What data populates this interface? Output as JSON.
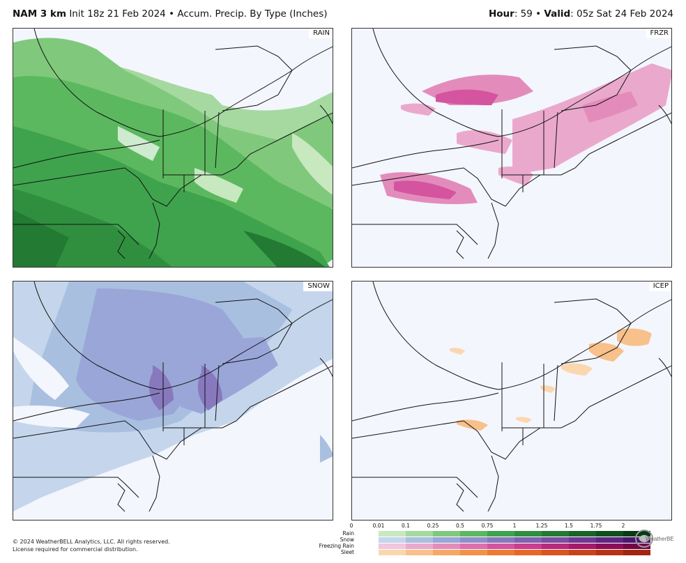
{
  "header": {
    "model": "NAM 3 km",
    "init_text": "Init 18z 21 Feb 2024",
    "bullet": "•",
    "product": "Accum. Precip. By Type (Inches)",
    "hour_label": "Hour",
    "hour_value": ": 59",
    "valid_label": "Valid",
    "valid_value": ": 05z Sat 24 Feb 2024"
  },
  "panels": {
    "rain": {
      "label": "RAIN"
    },
    "frzr": {
      "label": "FRZR"
    },
    "snow": {
      "label": "SNOW"
    },
    "icep": {
      "label": "ICEP"
    }
  },
  "footer": {
    "line1": "© 2024 WeatherBELL Analytics, LLC. All rights reserved.",
    "line2": "License required for commercial distribution."
  },
  "legend": {
    "ticks": [
      "0",
      "0.01",
      "0.1",
      "0.25",
      "0.5",
      "0.75",
      "1",
      "1.25",
      "1.5",
      "1.75",
      "2"
    ],
    "rows": [
      {
        "name": "Rain",
        "colors": [
          "#c8e8c0",
          "#a6d9a0",
          "#80c97c",
          "#5cb85f",
          "#3fa34d",
          "#2f8f3f",
          "#237a33",
          "#186528",
          "#0f501e",
          "#083d14"
        ]
      },
      {
        "name": "Snow",
        "colors": [
          "#c5d6ec",
          "#a9bfe0",
          "#9aa6d8",
          "#8f8fcc",
          "#8879be",
          "#8063b0",
          "#7a4ea2",
          "#6f3894",
          "#5e2683",
          "#4a166f"
        ]
      },
      {
        "name": "Freezing Rain",
        "colors": [
          "#f2c6dd",
          "#eaa9cc",
          "#e38cbc",
          "#dc6fad",
          "#d4549f",
          "#c93e8f",
          "#b82a7d",
          "#a41a6b",
          "#8c0e58",
          "#730545"
        ]
      },
      {
        "name": "Sleet",
        "colors": [
          "#fbd7b0",
          "#f8c08a",
          "#f5a866",
          "#f29248",
          "#ee7b33",
          "#e66726",
          "#d9541f",
          "#c9431a",
          "#b63414",
          "#a0260f"
        ]
      }
    ]
  },
  "logo": {
    "text": "WeatherBELL"
  }
}
